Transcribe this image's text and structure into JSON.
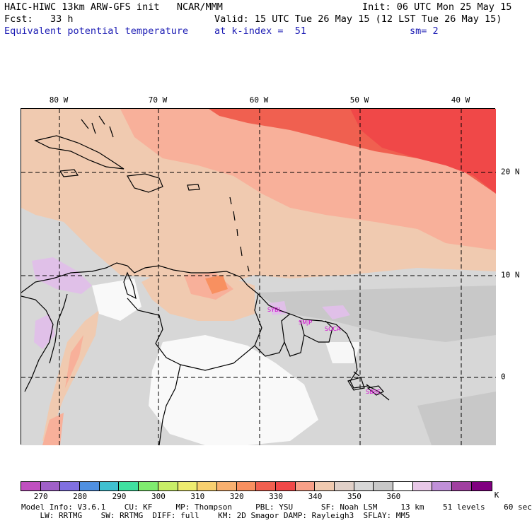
{
  "header": {
    "line1_left": "HAIC-HIWC 13km ARW-GFS init   NCAR/MMM",
    "line1_right": "Init: 06 UTC Mon 25 May 15",
    "line2_left": "Fcst:   33 h",
    "line2_right": "Valid: 15 UTC Tue 26 May 15 (12 LST Tue 26 May 15)",
    "line3_left": "Equivalent potential temperature",
    "line3_mid": "at k-index =  51",
    "line3_right": "sm= 2"
  },
  "map": {
    "longitude_labels": [
      "80 W",
      "70 W",
      "60 W",
      "50 W",
      "40 W"
    ],
    "latitude_labels": [
      "20 N",
      "10 N",
      "0"
    ],
    "city_labels": [
      "SYBL",
      "SMJP",
      "SOCA",
      "SBBE"
    ]
  },
  "colorbar": {
    "unit": "K",
    "tick_labels": [
      "270",
      "280",
      "290",
      "300",
      "310",
      "320",
      "330",
      "340",
      "350",
      "360"
    ],
    "colors": [
      "#c050c0",
      "#a060c8",
      "#8070e0",
      "#5090e0",
      "#40c0d0",
      "#40e0a0",
      "#80ec70",
      "#c8ee68",
      "#eeec70",
      "#f8d070",
      "#f8b070",
      "#f89060",
      "#f06050",
      "#f04848",
      "#f8a088",
      "#f0cab0",
      "#e0d0c8",
      "#d7d7d7",
      "#c8c8c8",
      "#ffffff",
      "#e8c8e8",
      "#c090d8",
      "#a040a0",
      "#800080"
    ]
  },
  "footer": {
    "line1": "Model Info: V3.6.1    CU: KF     MP: Thompson     PBL: YSU      SF: Noah LSM     13 km    51 levels    60 sec",
    "line2": "    LW: RRTMG    SW: RRTMG  DIFF: full    KM: 2D Smagor DAMP: Rayleigh3  SFLAY: MM5"
  }
}
